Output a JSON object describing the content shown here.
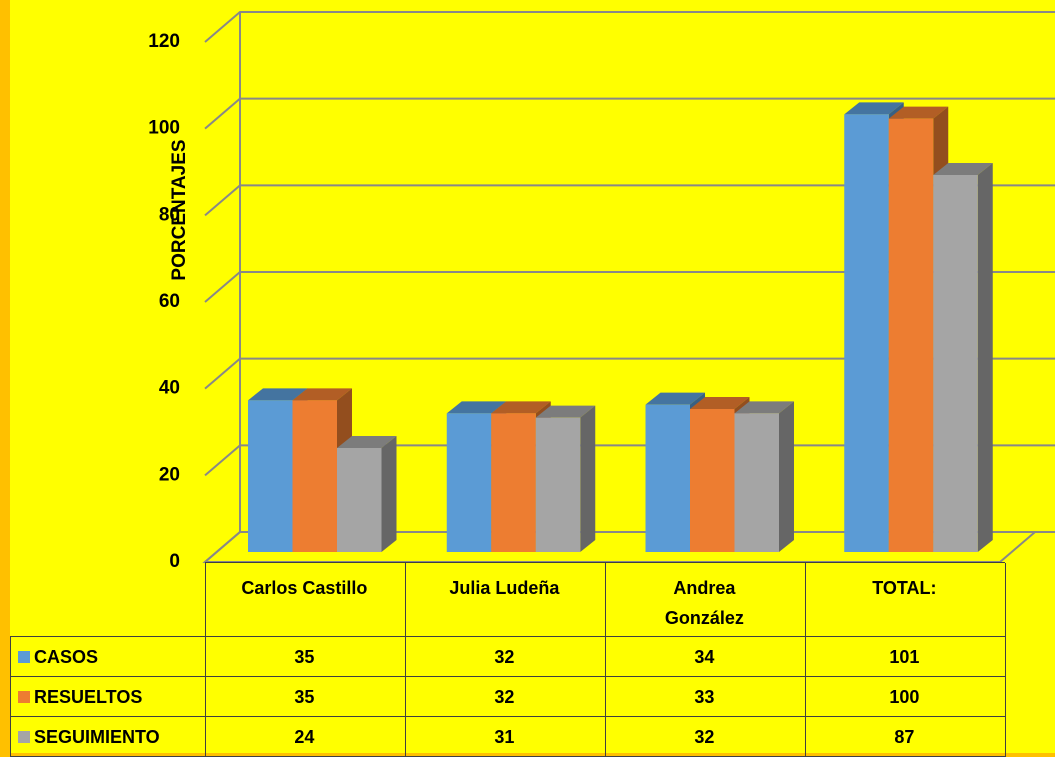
{
  "chart_data": {
    "type": "bar3d",
    "y_label": "PORCENTAJES",
    "categories": [
      "Carlos Castillo",
      "Julia Ludeña",
      "Andrea González",
      "TOTAL:"
    ],
    "series": [
      {
        "name": "CASOS",
        "color": "#5b9bd5",
        "values": [
          35,
          32,
          34,
          101
        ]
      },
      {
        "name": "RESUELTOS",
        "color": "#ed7d31",
        "values": [
          35,
          32,
          33,
          100
        ]
      },
      {
        "name": "SEGUIMIENTO",
        "color": "#a5a5a5",
        "values": [
          24,
          31,
          32,
          87
        ]
      }
    ],
    "ylim": [
      0,
      120
    ],
    "yticks": [
      0,
      20,
      40,
      60,
      80,
      100,
      120
    ],
    "grid": true,
    "background": "#ffff00",
    "border_color": "#ffc000"
  }
}
